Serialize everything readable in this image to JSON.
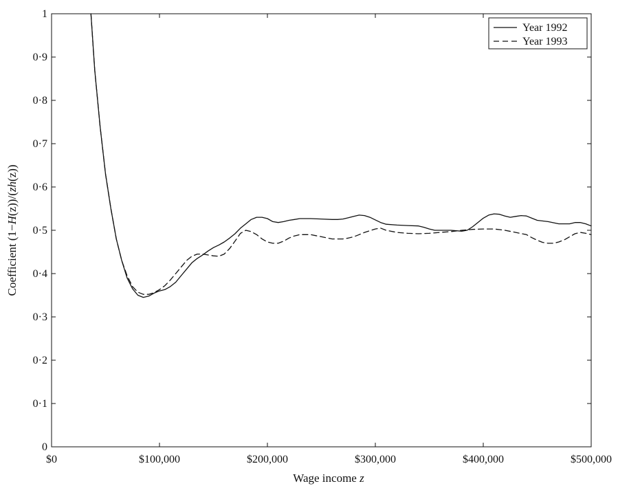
{
  "chart_data": {
    "type": "line",
    "title": "",
    "xlabel_prefix": "Wage income ",
    "xlabel_var": "z",
    "ylabel_parts": [
      "Coefficient (1−",
      "H",
      "(z))/(",
      "z",
      "h",
      "(z))"
    ],
    "xlim": [
      0,
      500000
    ],
    "ylim": [
      0,
      1
    ],
    "x_ticks": [
      0,
      100000,
      200000,
      300000,
      400000,
      500000
    ],
    "x_tick_labels": [
      "$0",
      "$100,000",
      "$200,000",
      "$300,000",
      "$400,000",
      "$500,000"
    ],
    "y_ticks": [
      0,
      0.1,
      0.2,
      0.3,
      0.4,
      0.5,
      0.6,
      0.7,
      0.8,
      0.9,
      1
    ],
    "y_tick_labels": [
      "0",
      "0·1",
      "0·2",
      "0·3",
      "0·4",
      "0·5",
      "0·6",
      "0·7",
      "0·8",
      "0·9",
      "1"
    ],
    "grid": false,
    "legend_position": "top-right",
    "series": [
      {
        "name": "Year 1992",
        "style": "solid",
        "color": "#111111",
        "points": [
          [
            36500,
            1.0
          ],
          [
            40000,
            0.87
          ],
          [
            45000,
            0.74
          ],
          [
            50000,
            0.63
          ],
          [
            55000,
            0.55
          ],
          [
            60000,
            0.48
          ],
          [
            65000,
            0.43
          ],
          [
            70000,
            0.39
          ],
          [
            75000,
            0.365
          ],
          [
            80000,
            0.35
          ],
          [
            85000,
            0.345
          ],
          [
            90000,
            0.348
          ],
          [
            95000,
            0.355
          ],
          [
            100000,
            0.36
          ],
          [
            105000,
            0.363
          ],
          [
            110000,
            0.37
          ],
          [
            115000,
            0.38
          ],
          [
            120000,
            0.395
          ],
          [
            125000,
            0.41
          ],
          [
            130000,
            0.425
          ],
          [
            135000,
            0.435
          ],
          [
            140000,
            0.443
          ],
          [
            145000,
            0.452
          ],
          [
            150000,
            0.46
          ],
          [
            155000,
            0.466
          ],
          [
            160000,
            0.473
          ],
          [
            165000,
            0.482
          ],
          [
            170000,
            0.492
          ],
          [
            175000,
            0.505
          ],
          [
            180000,
            0.515
          ],
          [
            185000,
            0.525
          ],
          [
            190000,
            0.53
          ],
          [
            195000,
            0.53
          ],
          [
            200000,
            0.527
          ],
          [
            205000,
            0.52
          ],
          [
            210000,
            0.518
          ],
          [
            215000,
            0.52
          ],
          [
            220000,
            0.523
          ],
          [
            225000,
            0.525
          ],
          [
            230000,
            0.527
          ],
          [
            240000,
            0.527
          ],
          [
            250000,
            0.526
          ],
          [
            260000,
            0.525
          ],
          [
            265000,
            0.525
          ],
          [
            270000,
            0.526
          ],
          [
            275000,
            0.529
          ],
          [
            280000,
            0.532
          ],
          [
            285000,
            0.535
          ],
          [
            290000,
            0.534
          ],
          [
            295000,
            0.53
          ],
          [
            300000,
            0.524
          ],
          [
            305000,
            0.518
          ],
          [
            310000,
            0.514
          ],
          [
            320000,
            0.512
          ],
          [
            330000,
            0.511
          ],
          [
            340000,
            0.51
          ],
          [
            345000,
            0.507
          ],
          [
            350000,
            0.503
          ],
          [
            355000,
            0.5
          ],
          [
            360000,
            0.5
          ],
          [
            370000,
            0.5
          ],
          [
            380000,
            0.498
          ],
          [
            385000,
            0.5
          ],
          [
            390000,
            0.508
          ],
          [
            395000,
            0.518
          ],
          [
            400000,
            0.528
          ],
          [
            405000,
            0.535
          ],
          [
            410000,
            0.538
          ],
          [
            415000,
            0.537
          ],
          [
            420000,
            0.533
          ],
          [
            425000,
            0.53
          ],
          [
            430000,
            0.532
          ],
          [
            435000,
            0.534
          ],
          [
            440000,
            0.533
          ],
          [
            445000,
            0.528
          ],
          [
            450000,
            0.523
          ],
          [
            460000,
            0.52
          ],
          [
            470000,
            0.515
          ],
          [
            480000,
            0.515
          ],
          [
            485000,
            0.518
          ],
          [
            490000,
            0.518
          ],
          [
            495000,
            0.515
          ],
          [
            500000,
            0.51
          ]
        ]
      },
      {
        "name": "Year 1993",
        "style": "dashed",
        "color": "#111111",
        "points": [
          [
            36500,
            1.0
          ],
          [
            40000,
            0.87
          ],
          [
            45000,
            0.74
          ],
          [
            50000,
            0.63
          ],
          [
            55000,
            0.55
          ],
          [
            60000,
            0.48
          ],
          [
            65000,
            0.43
          ],
          [
            70000,
            0.395
          ],
          [
            75000,
            0.37
          ],
          [
            80000,
            0.357
          ],
          [
            85000,
            0.352
          ],
          [
            90000,
            0.352
          ],
          [
            95000,
            0.356
          ],
          [
            100000,
            0.363
          ],
          [
            105000,
            0.372
          ],
          [
            110000,
            0.385
          ],
          [
            115000,
            0.4
          ],
          [
            120000,
            0.415
          ],
          [
            125000,
            0.43
          ],
          [
            130000,
            0.44
          ],
          [
            135000,
            0.445
          ],
          [
            140000,
            0.445
          ],
          [
            145000,
            0.443
          ],
          [
            150000,
            0.441
          ],
          [
            155000,
            0.44
          ],
          [
            160000,
            0.445
          ],
          [
            165000,
            0.458
          ],
          [
            170000,
            0.475
          ],
          [
            175000,
            0.493
          ],
          [
            180000,
            0.5
          ],
          [
            185000,
            0.497
          ],
          [
            190000,
            0.49
          ],
          [
            195000,
            0.48
          ],
          [
            200000,
            0.473
          ],
          [
            205000,
            0.47
          ],
          [
            210000,
            0.47
          ],
          [
            215000,
            0.475
          ],
          [
            220000,
            0.482
          ],
          [
            225000,
            0.487
          ],
          [
            230000,
            0.49
          ],
          [
            240000,
            0.49
          ],
          [
            250000,
            0.485
          ],
          [
            260000,
            0.48
          ],
          [
            270000,
            0.48
          ],
          [
            275000,
            0.482
          ],
          [
            280000,
            0.485
          ],
          [
            285000,
            0.49
          ],
          [
            290000,
            0.495
          ],
          [
            300000,
            0.503
          ],
          [
            305000,
            0.505
          ],
          [
            310000,
            0.5
          ],
          [
            320000,
            0.495
          ],
          [
            330000,
            0.493
          ],
          [
            340000,
            0.492
          ],
          [
            350000,
            0.493
          ],
          [
            360000,
            0.495
          ],
          [
            370000,
            0.497
          ],
          [
            380000,
            0.5
          ],
          [
            390000,
            0.502
          ],
          [
            400000,
            0.503
          ],
          [
            410000,
            0.503
          ],
          [
            420000,
            0.5
          ],
          [
            430000,
            0.495
          ],
          [
            440000,
            0.49
          ],
          [
            445000,
            0.483
          ],
          [
            450000,
            0.477
          ],
          [
            455000,
            0.472
          ],
          [
            460000,
            0.47
          ],
          [
            465000,
            0.47
          ],
          [
            470000,
            0.473
          ],
          [
            475000,
            0.478
          ],
          [
            480000,
            0.485
          ],
          [
            485000,
            0.492
          ],
          [
            490000,
            0.495
          ],
          [
            495000,
            0.493
          ],
          [
            500000,
            0.49
          ]
        ]
      }
    ]
  }
}
